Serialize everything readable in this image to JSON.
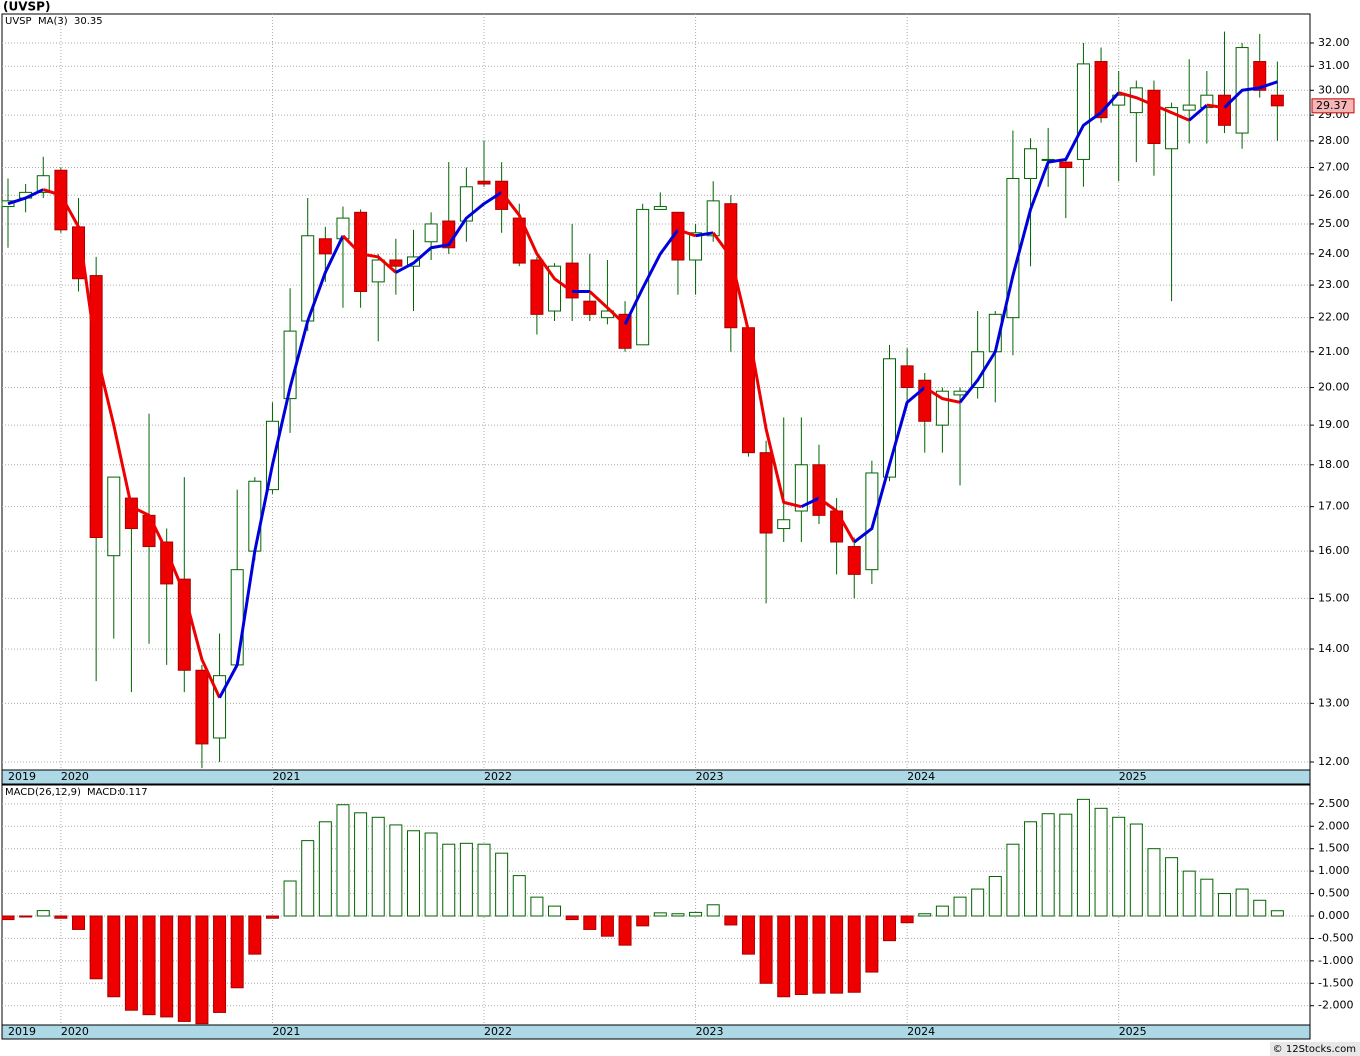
{
  "chart_data": [
    {
      "type": "candlestick",
      "title": "(UVSP)",
      "name": "UVSP",
      "categories": [
        "2019",
        null,
        null,
        "2020",
        null,
        null,
        null,
        null,
        null,
        null,
        null,
        null,
        null,
        null,
        null,
        "2021",
        null,
        null,
        null,
        null,
        null,
        null,
        null,
        null,
        null,
        null,
        null,
        "2022",
        null,
        null,
        null,
        null,
        null,
        null,
        null,
        null,
        null,
        null,
        null,
        "2023",
        null,
        null,
        null,
        null,
        null,
        null,
        null,
        null,
        null,
        null,
        null,
        "2024",
        null,
        null,
        null,
        null,
        null,
        null,
        null,
        null,
        null,
        null,
        null,
        "2025",
        null,
        null,
        null,
        null,
        null,
        null,
        null,
        null,
        null
      ],
      "open": [
        25.6,
        25.9,
        26.1,
        26.9,
        24.9,
        23.3,
        15.9,
        17.2,
        16.8,
        16.2,
        15.4,
        13.6,
        12.4,
        13.7,
        16.0,
        17.4,
        19.7,
        21.9,
        24.5,
        24.5,
        25.4,
        23.1,
        23.8,
        23.6,
        24.4,
        25.1,
        25.1,
        26.5,
        26.5,
        25.2,
        23.8,
        22.2,
        23.7,
        22.5,
        22.0,
        22.1,
        21.2,
        25.5,
        25.4,
        23.8,
        24.6,
        25.7,
        21.7,
        18.3,
        16.5,
        16.9,
        18.0,
        16.9,
        16.1,
        15.6,
        17.7,
        20.6,
        20.2,
        19.0,
        19.8,
        20.0,
        21.0,
        22.0,
        26.6,
        27.3,
        27.2,
        27.3,
        31.2,
        29.4,
        29.1,
        30.0,
        27.7,
        29.2,
        29.3,
        29.8,
        28.3,
        31.2,
        29.8
      ],
      "high": [
        26.6,
        26.4,
        27.4,
        27.0,
        25.9,
        23.9,
        17.7,
        17.2,
        19.3,
        16.5,
        17.7,
        13.7,
        14.3,
        17.4,
        17.7,
        19.6,
        22.9,
        25.9,
        24.9,
        25.6,
        25.5,
        24.0,
        24.5,
        24.8,
        25.4,
        27.2,
        27.0,
        28.0,
        27.2,
        25.7,
        23.9,
        23.7,
        25.0,
        24.0,
        23.8,
        22.5,
        25.7,
        26.1,
        25.4,
        25.0,
        26.5,
        26.0,
        21.7,
        18.6,
        19.2,
        19.2,
        18.5,
        17.2,
        16.3,
        18.1,
        21.2,
        21.1,
        20.4,
        20.0,
        20.0,
        22.2,
        22.2,
        28.4,
        28.1,
        28.5,
        27.3,
        32.0,
        31.8,
        30.8,
        30.4,
        30.4,
        29.5,
        31.3,
        30.8,
        32.5,
        32.0,
        32.4,
        31.2
      ],
      "low": [
        24.2,
        25.4,
        25.9,
        24.7,
        22.8,
        13.4,
        14.2,
        13.2,
        14.1,
        13.7,
        13.2,
        11.9,
        12.0,
        13.7,
        15.8,
        17.3,
        18.8,
        21.6,
        23.1,
        22.3,
        22.3,
        21.3,
        22.7,
        22.2,
        23.8,
        24.0,
        24.4,
        26.3,
        24.7,
        23.6,
        21.5,
        21.9,
        21.9,
        21.9,
        21.8,
        21.0,
        21.2,
        25.5,
        22.7,
        22.7,
        24.4,
        21.0,
        18.2,
        14.9,
        16.2,
        16.2,
        16.6,
        15.5,
        15.0,
        15.3,
        17.6,
        19.5,
        18.3,
        18.3,
        17.5,
        19.7,
        19.6,
        20.9,
        23.6,
        26.3,
        25.2,
        26.3,
        28.7,
        26.5,
        27.2,
        26.7,
        22.5,
        27.9,
        27.9,
        28.3,
        27.7,
        29.7,
        28.0
      ],
      "close": [
        25.8,
        26.1,
        26.7,
        24.8,
        23.2,
        16.3,
        17.7,
        16.5,
        16.1,
        15.3,
        13.6,
        12.3,
        13.5,
        15.6,
        17.6,
        19.1,
        21.6,
        24.6,
        24.0,
        25.2,
        22.8,
        23.8,
        23.6,
        23.9,
        25.0,
        24.2,
        26.3,
        26.4,
        25.5,
        23.7,
        22.1,
        23.6,
        22.6,
        22.1,
        22.2,
        21.1,
        25.5,
        25.6,
        23.8,
        24.7,
        25.8,
        21.7,
        18.3,
        16.4,
        16.7,
        18.0,
        16.8,
        16.2,
        15.5,
        17.8,
        20.8,
        20.0,
        19.1,
        19.9,
        19.9,
        21.0,
        22.1,
        26.6,
        27.7,
        27.3,
        27.0,
        31.1,
        28.9,
        29.8,
        30.1,
        27.9,
        29.3,
        29.4,
        29.8,
        28.6,
        31.8,
        30.0,
        29.37
      ],
      "up_color": "#006400",
      "down_color": "#ee0000",
      "ma": {
        "name": "MA(3)",
        "up_color": "#0000dd",
        "down_color": "#ee0000",
        "values": [
          25.7,
          25.9,
          26.2,
          26.0,
          24.9,
          21.0,
          19.0,
          17.0,
          16.8,
          16.0,
          15.1,
          13.8,
          13.1,
          13.7,
          16.0,
          18.0,
          20.0,
          21.9,
          23.4,
          24.6,
          24.0,
          23.9,
          23.4,
          23.7,
          24.2,
          24.3,
          25.2,
          25.7,
          26.1,
          25.3,
          24.0,
          23.2,
          22.8,
          22.8,
          22.3,
          21.8,
          22.9,
          24.0,
          24.8,
          24.6,
          24.7,
          23.9,
          21.6,
          18.9,
          17.1,
          17.0,
          17.2,
          16.9,
          16.2,
          16.5,
          18.0,
          19.6,
          20.0,
          19.7,
          19.6,
          20.2,
          21.0,
          23.3,
          25.5,
          27.2,
          27.3,
          28.6,
          29.1,
          29.9,
          29.7,
          29.4,
          29.1,
          28.8,
          29.4,
          29.3,
          30.0,
          30.1,
          30.35
        ]
      },
      "log_scale": true,
      "grid": true,
      "ylim": [
        11.87,
        33.29
      ],
      "yticks": [
        {
          "value": 12,
          "label": "12.00"
        },
        {
          "value": 13,
          "label": "13.00"
        },
        {
          "value": 14,
          "label": "14.00"
        },
        {
          "value": 15,
          "label": "15.00"
        },
        {
          "value": 16,
          "label": "16.00"
        },
        {
          "value": 17,
          "label": "17.00"
        },
        {
          "value": 18,
          "label": "18.00"
        },
        {
          "value": 19,
          "label": "19.00"
        },
        {
          "value": 20,
          "label": "20.00"
        },
        {
          "value": 21,
          "label": "21.00"
        },
        {
          "value": 22,
          "label": "22.00"
        },
        {
          "value": 23,
          "label": "23.00"
        },
        {
          "value": 24,
          "label": "24.00"
        },
        {
          "value": 25,
          "label": "25.00"
        },
        {
          "value": 26,
          "label": "26.00"
        },
        {
          "value": 27,
          "label": "27.00"
        },
        {
          "value": 28,
          "label": "28.00"
        },
        {
          "value": 29,
          "label": "29.00"
        },
        {
          "value": 30,
          "label": "30.00"
        },
        {
          "value": 31,
          "label": "31.00"
        },
        {
          "value": 32,
          "label": "32.00"
        }
      ]
    },
    {
      "type": "bar",
      "title": "MACD(26,12,9)",
      "value_label": "MACD:",
      "categories": [
        "2019",
        null,
        null,
        "2020",
        null,
        null,
        null,
        null,
        null,
        null,
        null,
        null,
        null,
        null,
        null,
        "2021",
        null,
        null,
        null,
        null,
        null,
        null,
        null,
        null,
        null,
        null,
        null,
        "2022",
        null,
        null,
        null,
        null,
        null,
        null,
        null,
        null,
        null,
        null,
        null,
        "2023",
        null,
        null,
        null,
        null,
        null,
        null,
        null,
        null,
        null,
        null,
        null,
        "2024",
        null,
        null,
        null,
        null,
        null,
        null,
        null,
        null,
        null,
        null,
        null,
        "2025",
        null,
        null,
        null,
        null,
        null,
        null,
        null,
        null,
        null
      ],
      "values": [
        -0.08,
        -0.02,
        0.12,
        -0.05,
        -0.3,
        -1.4,
        -1.8,
        -2.1,
        -2.2,
        -2.25,
        -2.35,
        -2.4,
        -2.15,
        -1.6,
        -0.85,
        -0.05,
        0.78,
        1.68,
        2.1,
        2.48,
        2.3,
        2.2,
        2.03,
        1.9,
        1.85,
        1.6,
        1.62,
        1.6,
        1.4,
        0.9,
        0.42,
        0.22,
        -0.08,
        -0.3,
        -0.45,
        -0.65,
        -0.22,
        0.07,
        0.05,
        0.08,
        0.25,
        -0.2,
        -0.85,
        -1.5,
        -1.8,
        -1.75,
        -1.72,
        -1.72,
        -1.7,
        -1.25,
        -0.55,
        -0.15,
        0.05,
        0.22,
        0.42,
        0.6,
        0.88,
        1.6,
        2.1,
        2.28,
        2.27,
        2.6,
        2.4,
        2.2,
        2.05,
        1.5,
        1.3,
        1.0,
        0.82,
        0.5,
        0.6,
        0.35,
        0.117
      ],
      "pos_color": "#006400",
      "neg_color": "#ee0000",
      "grid": true,
      "ylim": [
        -2.43,
        2.92
      ],
      "yticks": [
        {
          "value": 2.5,
          "label": "2.500"
        },
        {
          "value": 2,
          "label": "2.000"
        },
        {
          "value": 1.5,
          "label": "1.500"
        },
        {
          "value": 1,
          "label": "1.000"
        },
        {
          "value": 0.5,
          "label": "0.500"
        },
        {
          "value": 0,
          "label": "0.000"
        },
        {
          "value": -0.5,
          "label": "-0.500"
        },
        {
          "value": -1,
          "label": "-1.000"
        },
        {
          "value": -1.5,
          "label": "-1.500"
        },
        {
          "value": -2,
          "label": "-2.000"
        }
      ]
    }
  ],
  "footer": "© 12Stocks.com"
}
